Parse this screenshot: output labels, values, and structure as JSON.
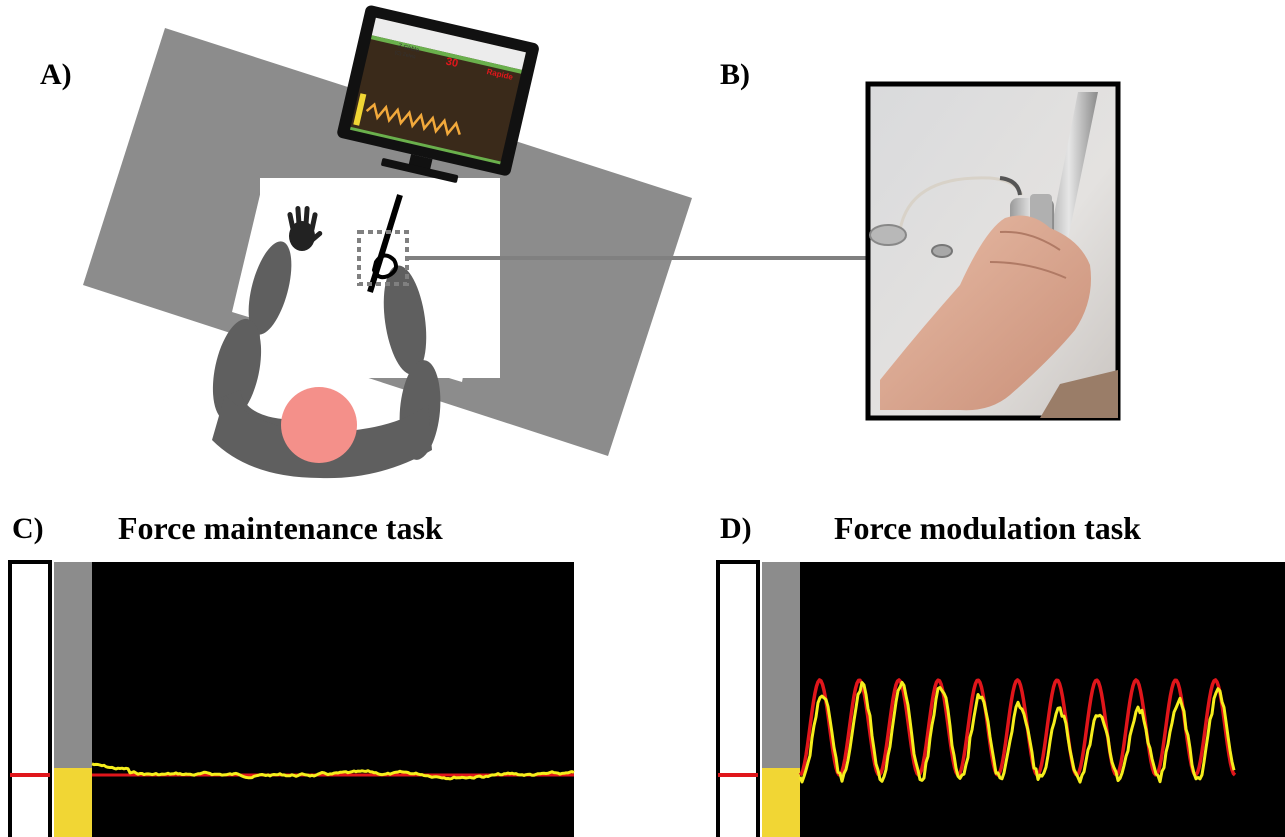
{
  "panels": {
    "a": {
      "label": "A)"
    },
    "b": {
      "label": "B)"
    },
    "c": {
      "label": "C)",
      "title": "Force maintenance task"
    },
    "d": {
      "label": "D)",
      "title": "Force modulation task"
    }
  },
  "monitor": {
    "header_left": "Z Gbbla",
    "header_left_sub": "(C) Zelvis",
    "counter": "30",
    "speed": "Rapide"
  },
  "colors": {
    "table": "#8c8c8c",
    "paper": "#ffffff",
    "body": "#5f5f5f",
    "head": "#f4908a",
    "screen_bg": "#000000",
    "target_line": "#e0161b",
    "force_trace": "#f6ee1c",
    "force_bar": "#f1d634",
    "bar_background": "#8c8c8c"
  },
  "icons": [
    "hand-icon",
    "head-icon",
    "monitor-icon",
    "force-sensor-photo"
  ],
  "traces": {
    "maintenance": {
      "target_level": 0.24,
      "noise": 0.03
    },
    "modulation": {
      "cycles": 11,
      "min": 0.25,
      "max": 0.65
    }
  }
}
